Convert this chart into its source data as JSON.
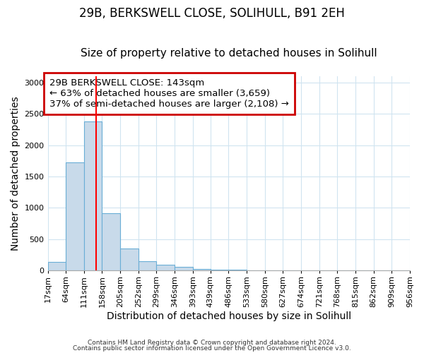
{
  "title1": "29B, BERKSWELL CLOSE, SOLIHULL, B91 2EH",
  "title2": "Size of property relative to detached houses in Solihull",
  "xlabel": "Distribution of detached houses by size in Solihull",
  "ylabel": "Number of detached properties",
  "bin_edges": [
    17,
    64,
    111,
    158,
    205,
    252,
    299,
    346,
    393,
    439,
    486,
    533,
    580,
    627,
    674,
    721,
    768,
    815,
    862,
    909,
    956
  ],
  "bar_heights": [
    140,
    1720,
    2380,
    920,
    355,
    155,
    90,
    60,
    30,
    20,
    10,
    5,
    3,
    0,
    0,
    0,
    0,
    0,
    0,
    0
  ],
  "bar_color": "#c8daea",
  "bar_edge_color": "#6aaed6",
  "red_line_x": 143,
  "annotation_text": "29B BERKSWELL CLOSE: 143sqm\n← 63% of detached houses are smaller (3,659)\n37% of semi-detached houses are larger (2,108) →",
  "annotation_box_color": "#ffffff",
  "annotation_box_edge": "#cc0000",
  "ylim": [
    0,
    3100
  ],
  "yticks": [
    0,
    500,
    1000,
    1500,
    2000,
    2500,
    3000
  ],
  "footer1": "Contains HM Land Registry data © Crown copyright and database right 2024.",
  "footer2": "Contains public sector information licensed under the Open Government Licence v3.0.",
  "background_color": "#ffffff",
  "grid_color": "#d0e4f0",
  "title1_fontsize": 12,
  "title2_fontsize": 11,
  "annot_fontsize": 9.5,
  "tick_fontsize": 8,
  "axis_label_fontsize": 10,
  "ylabel_fontsize": 10
}
